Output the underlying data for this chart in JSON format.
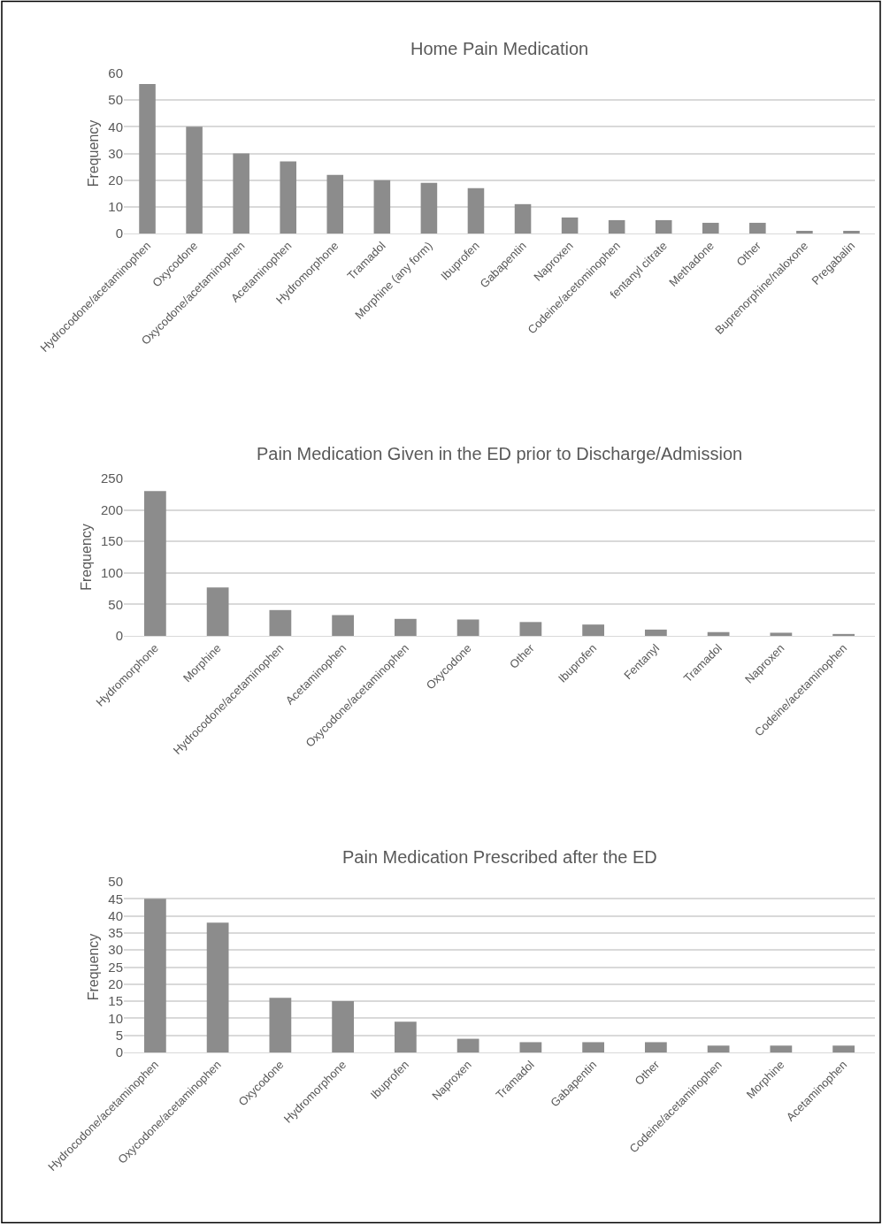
{
  "chart_data": [
    {
      "type": "bar",
      "title": "Home Pain Medication",
      "ylabel": "Frequency",
      "categories": [
        "Hydrocodone/acetaminophen",
        "Oxycodone",
        "Oxycodone/acetaminophen",
        "Acetaminophen",
        "Hydromorphone",
        "Tramadol",
        "Morphine (any form)",
        "Ibuprofen",
        "Gabapentin",
        "Naproxen",
        "Codeine/acetominophen",
        "fentanyl citrate",
        "Methadone",
        "Other",
        "Buprenorphine/naloxone",
        "Pregabalin"
      ],
      "values": [
        56,
        40,
        30,
        27,
        22,
        20,
        19,
        17,
        11,
        6,
        5,
        5,
        4,
        4,
        1,
        1
      ],
      "color": "#8c8c8c",
      "ylim": [
        0,
        60
      ],
      "yticks": [
        0,
        10,
        20,
        30,
        40,
        50,
        60
      ],
      "grid": "y"
    },
    {
      "type": "bar",
      "title": "Pain Medication Given in the ED prior to Discharge/Admission",
      "ylabel": "Frequency",
      "categories": [
        "Hydromorphone",
        "Morphine",
        "Hydrocodone/acetaminophen",
        "Acetaminophen",
        "Oxycodone/acetaminophen",
        "Oxycodone",
        "Other",
        "Ibuprofen",
        "Fentanyl",
        "Tramadol",
        "Naproxen",
        "Codeine/acetaminophen"
      ],
      "values": [
        230,
        77,
        41,
        33,
        27,
        26,
        22,
        18,
        10,
        6,
        5,
        3
      ],
      "color": "#8c8c8c",
      "ylim": [
        0,
        250
      ],
      "yticks": [
        0,
        50,
        100,
        150,
        200,
        250
      ],
      "grid": "y"
    },
    {
      "type": "bar",
      "title": "Pain Medication Prescribed after the ED",
      "ylabel": "Frequency",
      "categories": [
        "Hydrocodone/acetaminophen",
        "Oxycodone/acetaminophen",
        "Oxycodone",
        "Hydromorphone",
        "Ibuprofen",
        "Naproxen",
        "Tramadol",
        "Gabapentin",
        "Other",
        "Codeine/acetaminophen",
        "Morphine",
        "Acetaminophen"
      ],
      "values": [
        45,
        38,
        16,
        15,
        9,
        4,
        3,
        3,
        3,
        2,
        2,
        2
      ],
      "color": "#8c8c8c",
      "ylim": [
        0,
        50
      ],
      "yticks": [
        0,
        5,
        10,
        15,
        20,
        25,
        30,
        35,
        40,
        45,
        50
      ],
      "grid": "y"
    }
  ]
}
